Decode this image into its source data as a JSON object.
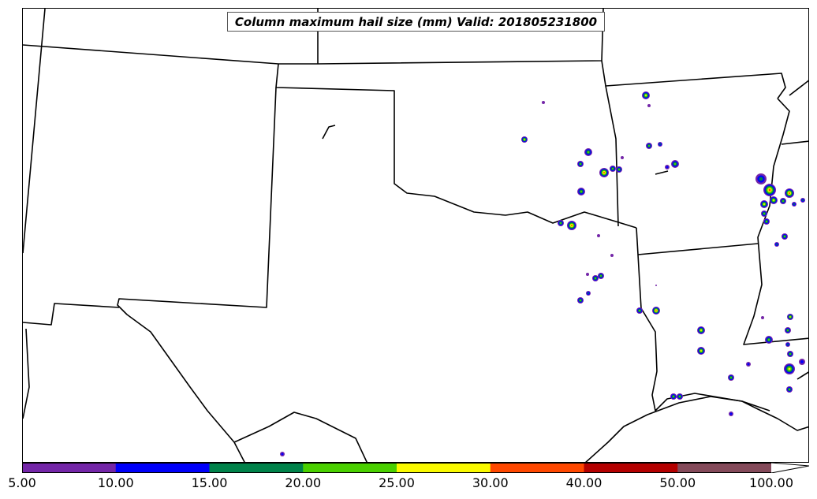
{
  "title": "Column maximum hail size (mm) Valid: 201805231800",
  "colorbar": {
    "labels": [
      "5.00",
      "10.00",
      "15.00",
      "20.00",
      "25.00",
      "30.00",
      "40.00",
      "50.00",
      "100.00"
    ],
    "colors": [
      "#7426a8",
      "#0000fa",
      "#00824a",
      "#4ad000",
      "#fafa00",
      "#ff4800",
      "#b40000",
      "#844a5a"
    ],
    "extend": "max"
  },
  "hail_palette": {
    "outer": "#7426a8",
    "ring2": "#0000fa",
    "ring3": "#00824a",
    "ring4": "#4ad000",
    "ring5": "#fafa00",
    "core": "#ff4800"
  }
}
